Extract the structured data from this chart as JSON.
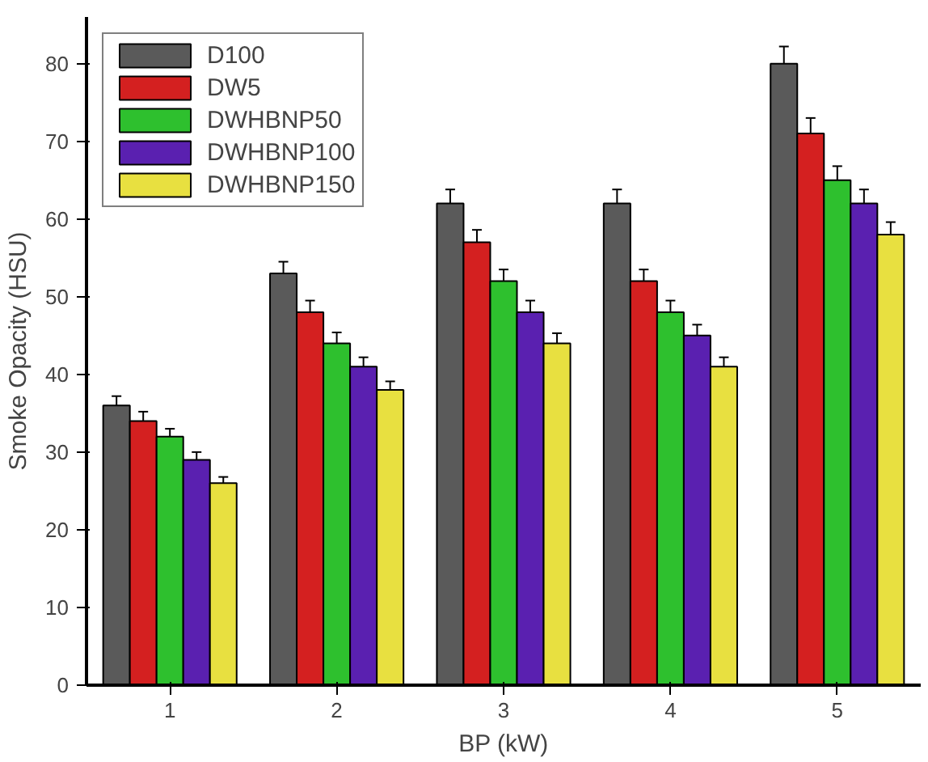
{
  "chart_data": {
    "type": "bar",
    "xlabel": "BP (kW)",
    "ylabel": "Smoke Opacity (HSU)",
    "categories": [
      "1",
      "2",
      "3",
      "4",
      "5"
    ],
    "ylim": [
      0,
      86
    ],
    "yticks": [
      0,
      10,
      20,
      30,
      40,
      50,
      60,
      70,
      80
    ],
    "grid": false,
    "legend": "top left",
    "series": [
      {
        "name": "D100",
        "color": "#5a5a5a",
        "values": [
          36,
          53,
          62,
          62,
          80
        ],
        "errors": [
          1.2,
          1.5,
          1.8,
          1.8,
          2.2
        ]
      },
      {
        "name": "DW5",
        "color": "#d42020",
        "values": [
          34,
          48,
          57,
          52,
          71
        ],
        "errors": [
          1.2,
          1.5,
          1.6,
          1.5,
          2.0
        ]
      },
      {
        "name": "DWHBNP50",
        "color": "#2ec02e",
        "values": [
          32,
          44,
          52,
          48,
          65
        ],
        "errors": [
          1.0,
          1.4,
          1.5,
          1.5,
          1.8
        ]
      },
      {
        "name": "DWHBNP100",
        "color": "#5a20b0",
        "values": [
          29,
          41,
          48,
          45,
          62
        ],
        "errors": [
          1.0,
          1.2,
          1.5,
          1.4,
          1.8
        ]
      },
      {
        "name": "DWHBNP150",
        "color": "#e8e040",
        "values": [
          26,
          38,
          44,
          41,
          58
        ],
        "errors": [
          0.8,
          1.1,
          1.3,
          1.2,
          1.6
        ]
      }
    ]
  }
}
